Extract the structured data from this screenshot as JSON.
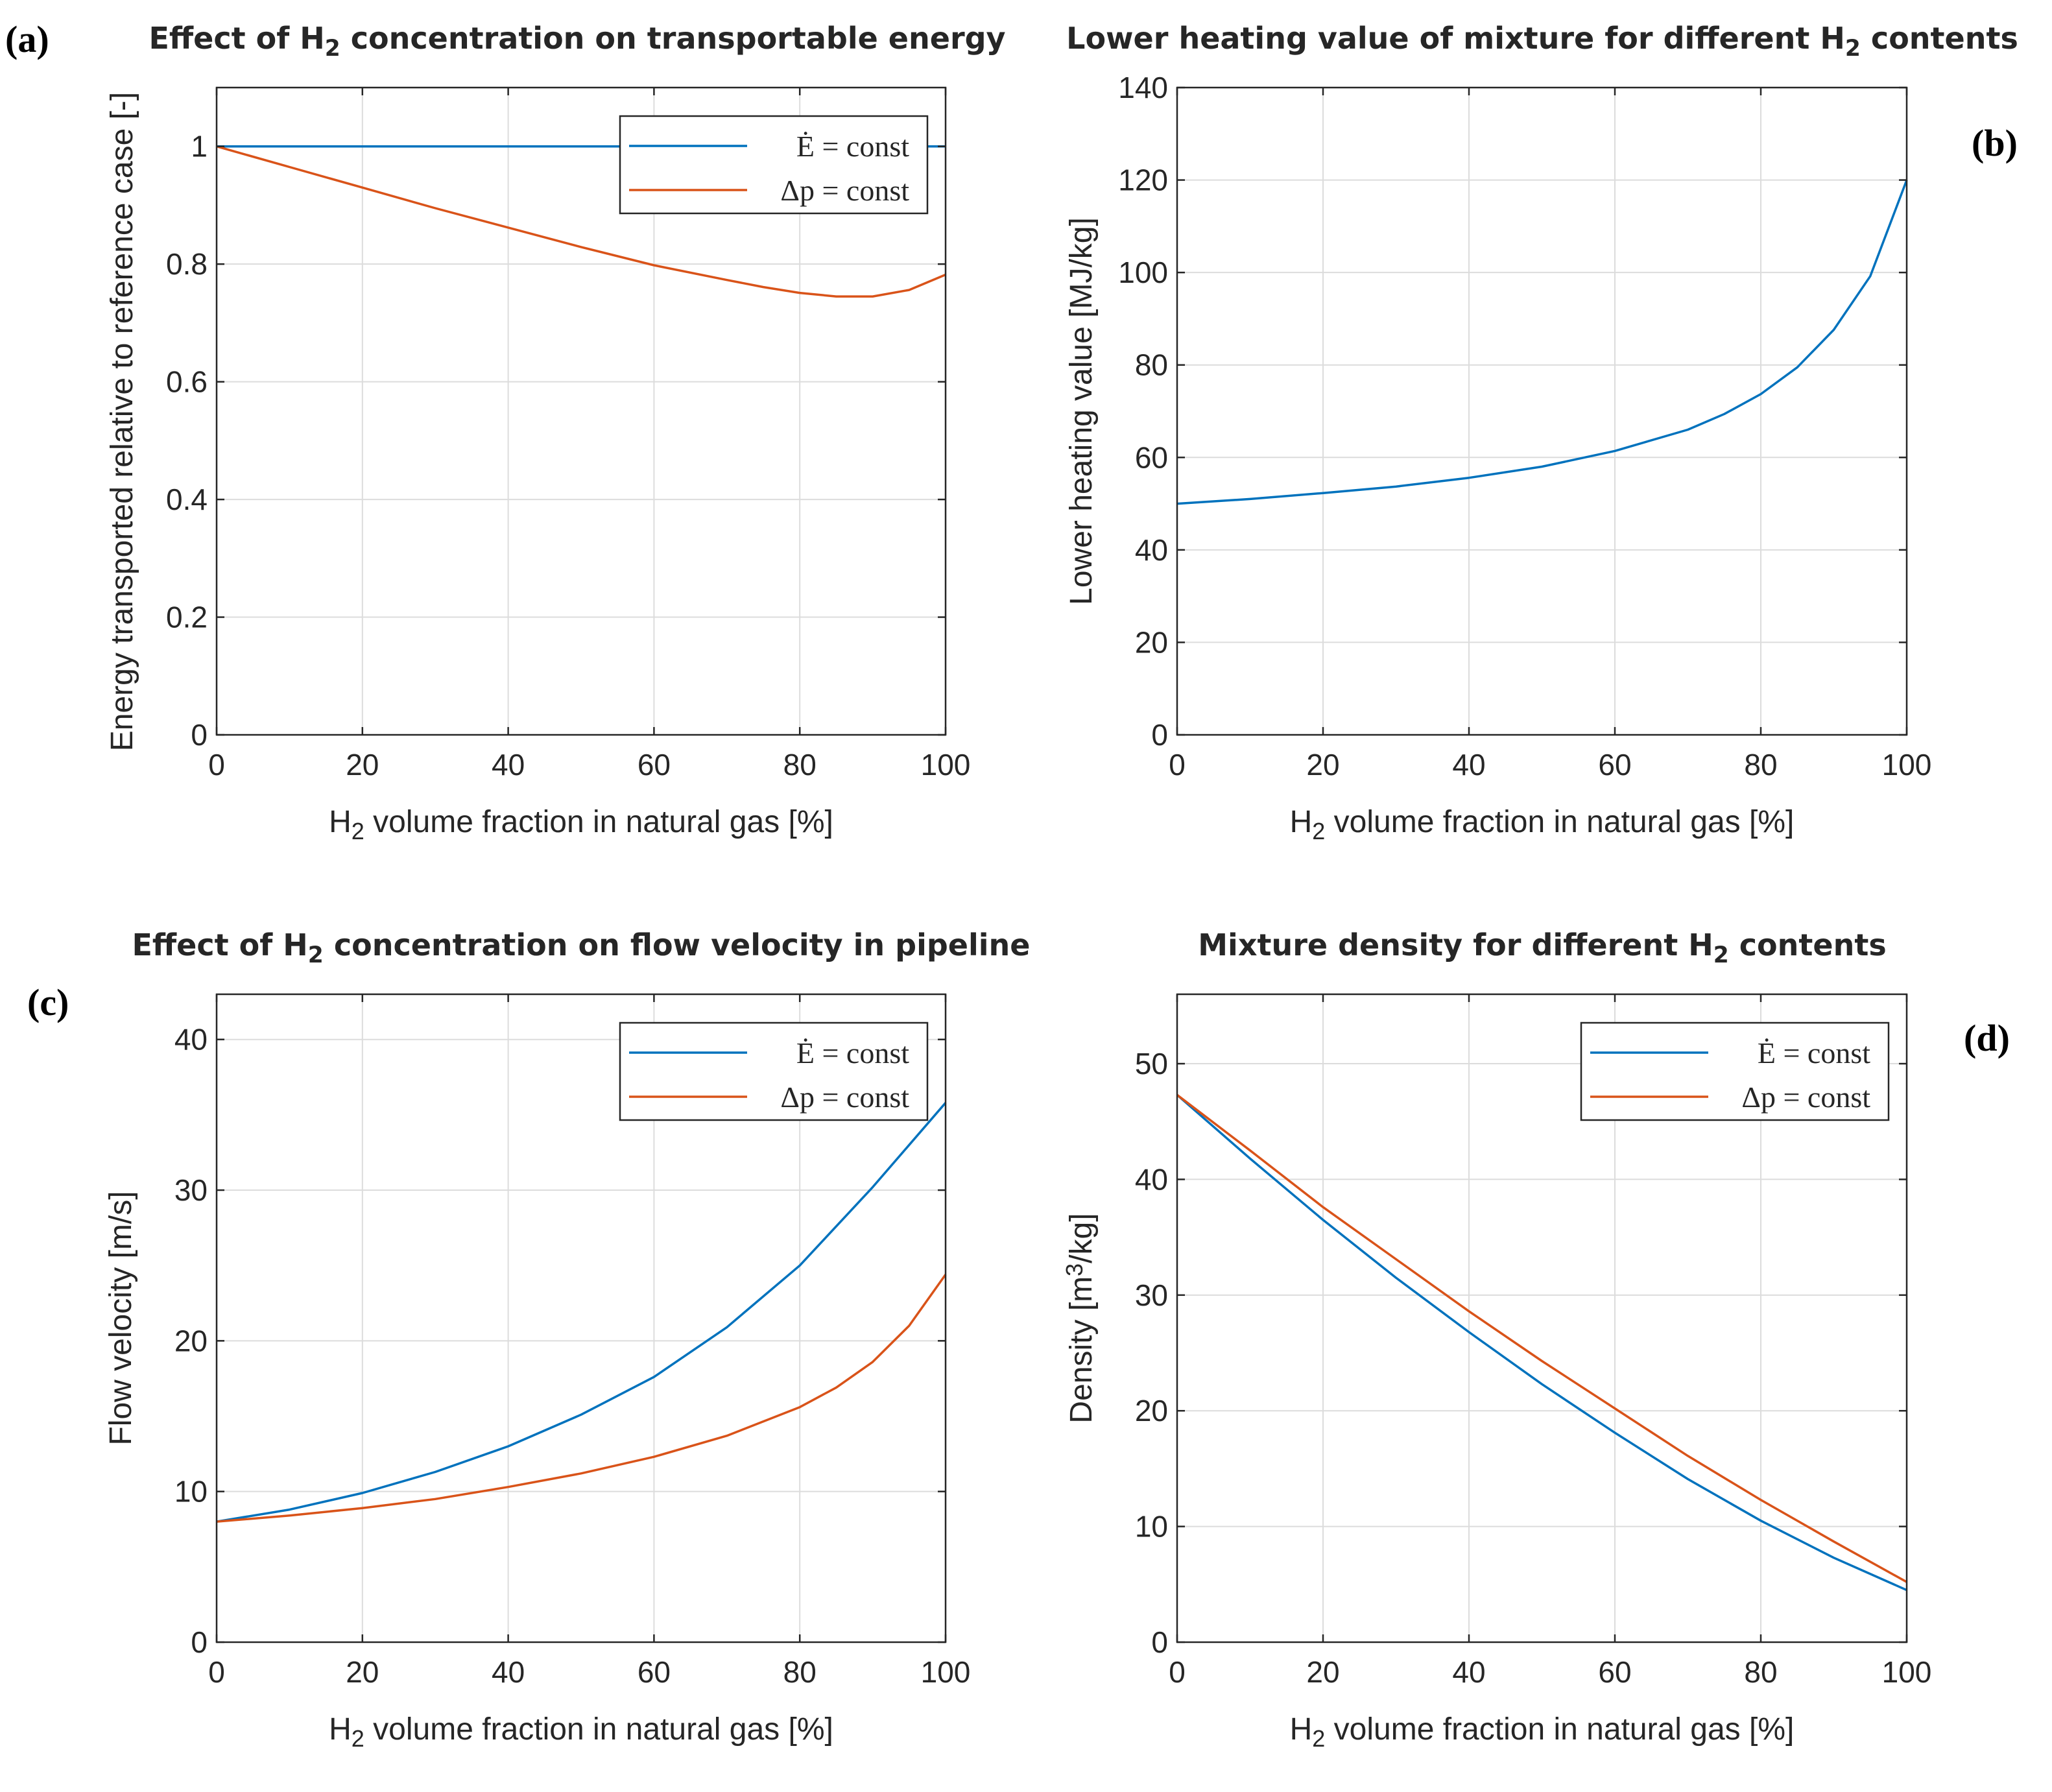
{
  "colors": {
    "blue": "#0072BD",
    "orange": "#D95319"
  },
  "chart_data": [
    {
      "id": "a",
      "panel_label": "(a)",
      "type": "line",
      "title_parts": [
        "Effect of H",
        "2",
        " concentration on transportable energy"
      ],
      "xlabel_parts": [
        "H",
        "2",
        " volume fraction in natural gas [%]"
      ],
      "ylabel_parts": [
        "Energy transported relative to reference case [-]"
      ],
      "xlim": [
        0,
        100
      ],
      "ylim": [
        0,
        1.1
      ],
      "xticks": [
        0,
        20,
        40,
        60,
        80,
        100
      ],
      "xtick_labels": [
        "0",
        "20",
        "40",
        "60",
        "80",
        "100"
      ],
      "yticks": [
        0,
        0.2,
        0.4,
        0.6,
        0.8,
        1
      ],
      "ytick_labels": [
        "0",
        "0.2",
        "0.4",
        "0.6",
        "0.8",
        "1"
      ],
      "grid": true,
      "legend": "top-right",
      "series": [
        {
          "name": "Ė = const",
          "color": "blue",
          "x": [
            0,
            20,
            40,
            60,
            80,
            100
          ],
          "y": [
            1,
            1,
            1,
            1,
            1,
            1
          ]
        },
        {
          "name": "Δp = const",
          "color": "orange",
          "x": [
            0,
            10,
            20,
            30,
            40,
            50,
            60,
            70,
            75,
            80,
            85,
            90,
            95,
            100
          ],
          "y": [
            1.0,
            0.965,
            0.93,
            0.895,
            0.862,
            0.829,
            0.798,
            0.773,
            0.761,
            0.751,
            0.745,
            0.745,
            0.756,
            0.782
          ]
        }
      ]
    },
    {
      "id": "b",
      "panel_label": "(b)",
      "type": "line",
      "title_parts": [
        "Lower heating value of mixture for different H",
        "2",
        " contents"
      ],
      "xlabel_parts": [
        "H",
        "2",
        " volume fraction in natural gas [%]"
      ],
      "ylabel_parts": [
        "Lower heating value [MJ/kg]"
      ],
      "xlim": [
        0,
        100
      ],
      "ylim": [
        0,
        140
      ],
      "xticks": [
        0,
        20,
        40,
        60,
        80,
        100
      ],
      "xtick_labels": [
        "0",
        "20",
        "40",
        "60",
        "80",
        "100"
      ],
      "yticks": [
        0,
        20,
        40,
        60,
        80,
        100,
        120,
        140
      ],
      "ytick_labels": [
        "0",
        "20",
        "40",
        "60",
        "80",
        "100",
        "120",
        "140"
      ],
      "grid": true,
      "legend": "none",
      "series": [
        {
          "name": "",
          "color": "blue",
          "x": [
            0,
            10,
            20,
            30,
            40,
            50,
            60,
            70,
            75,
            80,
            85,
            90,
            95,
            100
          ],
          "y": [
            50.0,
            51.0,
            52.3,
            53.7,
            55.6,
            58.0,
            61.4,
            66.0,
            69.4,
            73.7,
            79.5,
            87.6,
            99.2,
            120.0
          ]
        }
      ]
    },
    {
      "id": "c",
      "panel_label": "(c)",
      "type": "line",
      "title_parts": [
        "Effect of H",
        "2",
        " concentration on flow velocity in pipeline"
      ],
      "xlabel_parts": [
        "H",
        "2",
        " volume fraction in natural gas [%]"
      ],
      "ylabel_parts": [
        "Flow velocity [m/s]"
      ],
      "xlim": [
        0,
        100
      ],
      "ylim": [
        0,
        43
      ],
      "xticks": [
        0,
        20,
        40,
        60,
        80,
        100
      ],
      "xtick_labels": [
        "0",
        "20",
        "40",
        "60",
        "80",
        "100"
      ],
      "yticks": [
        0,
        10,
        20,
        30,
        40
      ],
      "ytick_labels": [
        "0",
        "10",
        "20",
        "30",
        "40"
      ],
      "grid": true,
      "legend": "top-right",
      "series": [
        {
          "name": "Ė = const",
          "color": "blue",
          "x": [
            0,
            10,
            20,
            30,
            40,
            50,
            60,
            70,
            80,
            90,
            100
          ],
          "y": [
            8.0,
            8.8,
            9.9,
            11.3,
            13.0,
            15.1,
            17.6,
            20.9,
            25.0,
            30.2,
            35.8
          ]
        },
        {
          "name": "Δp = const",
          "color": "orange",
          "x": [
            0,
            10,
            20,
            30,
            40,
            50,
            60,
            70,
            80,
            85,
            90,
            95,
            100
          ],
          "y": [
            8.0,
            8.4,
            8.9,
            9.5,
            10.3,
            11.2,
            12.3,
            13.7,
            15.6,
            16.9,
            18.6,
            21.0,
            24.4
          ]
        }
      ]
    },
    {
      "id": "d",
      "panel_label": "(d)",
      "type": "line",
      "title_parts": [
        "Mixture density for different H",
        "2",
        " contents"
      ],
      "xlabel_parts": [
        "H",
        "2",
        " volume fraction in natural gas [%]"
      ],
      "ylabel_parts": [
        "Density [m",
        "3",
        "/kg]"
      ],
      "xlim": [
        0,
        100
      ],
      "ylim": [
        0,
        56
      ],
      "xticks": [
        0,
        20,
        40,
        60,
        80,
        100
      ],
      "xtick_labels": [
        "0",
        "20",
        "40",
        "60",
        "80",
        "100"
      ],
      "yticks": [
        0,
        10,
        20,
        30,
        40,
        50
      ],
      "ytick_labels": [
        "0",
        "10",
        "20",
        "30",
        "40",
        "50"
      ],
      "grid": true,
      "legend": "top-right",
      "series": [
        {
          "name": "Ė = const",
          "color": "blue",
          "x": [
            0,
            10,
            20,
            30,
            40,
            50,
            60,
            70,
            80,
            90,
            100
          ],
          "y": [
            47.3,
            41.8,
            36.5,
            31.5,
            26.8,
            22.3,
            18.1,
            14.1,
            10.5,
            7.3,
            4.5
          ]
        },
        {
          "name": "Δp = const",
          "color": "orange",
          "x": [
            0,
            10,
            20,
            30,
            40,
            50,
            60,
            70,
            80,
            90,
            100
          ],
          "y": [
            47.3,
            42.5,
            37.6,
            33.1,
            28.6,
            24.3,
            20.2,
            16.1,
            12.3,
            8.7,
            5.2
          ]
        }
      ]
    }
  ]
}
